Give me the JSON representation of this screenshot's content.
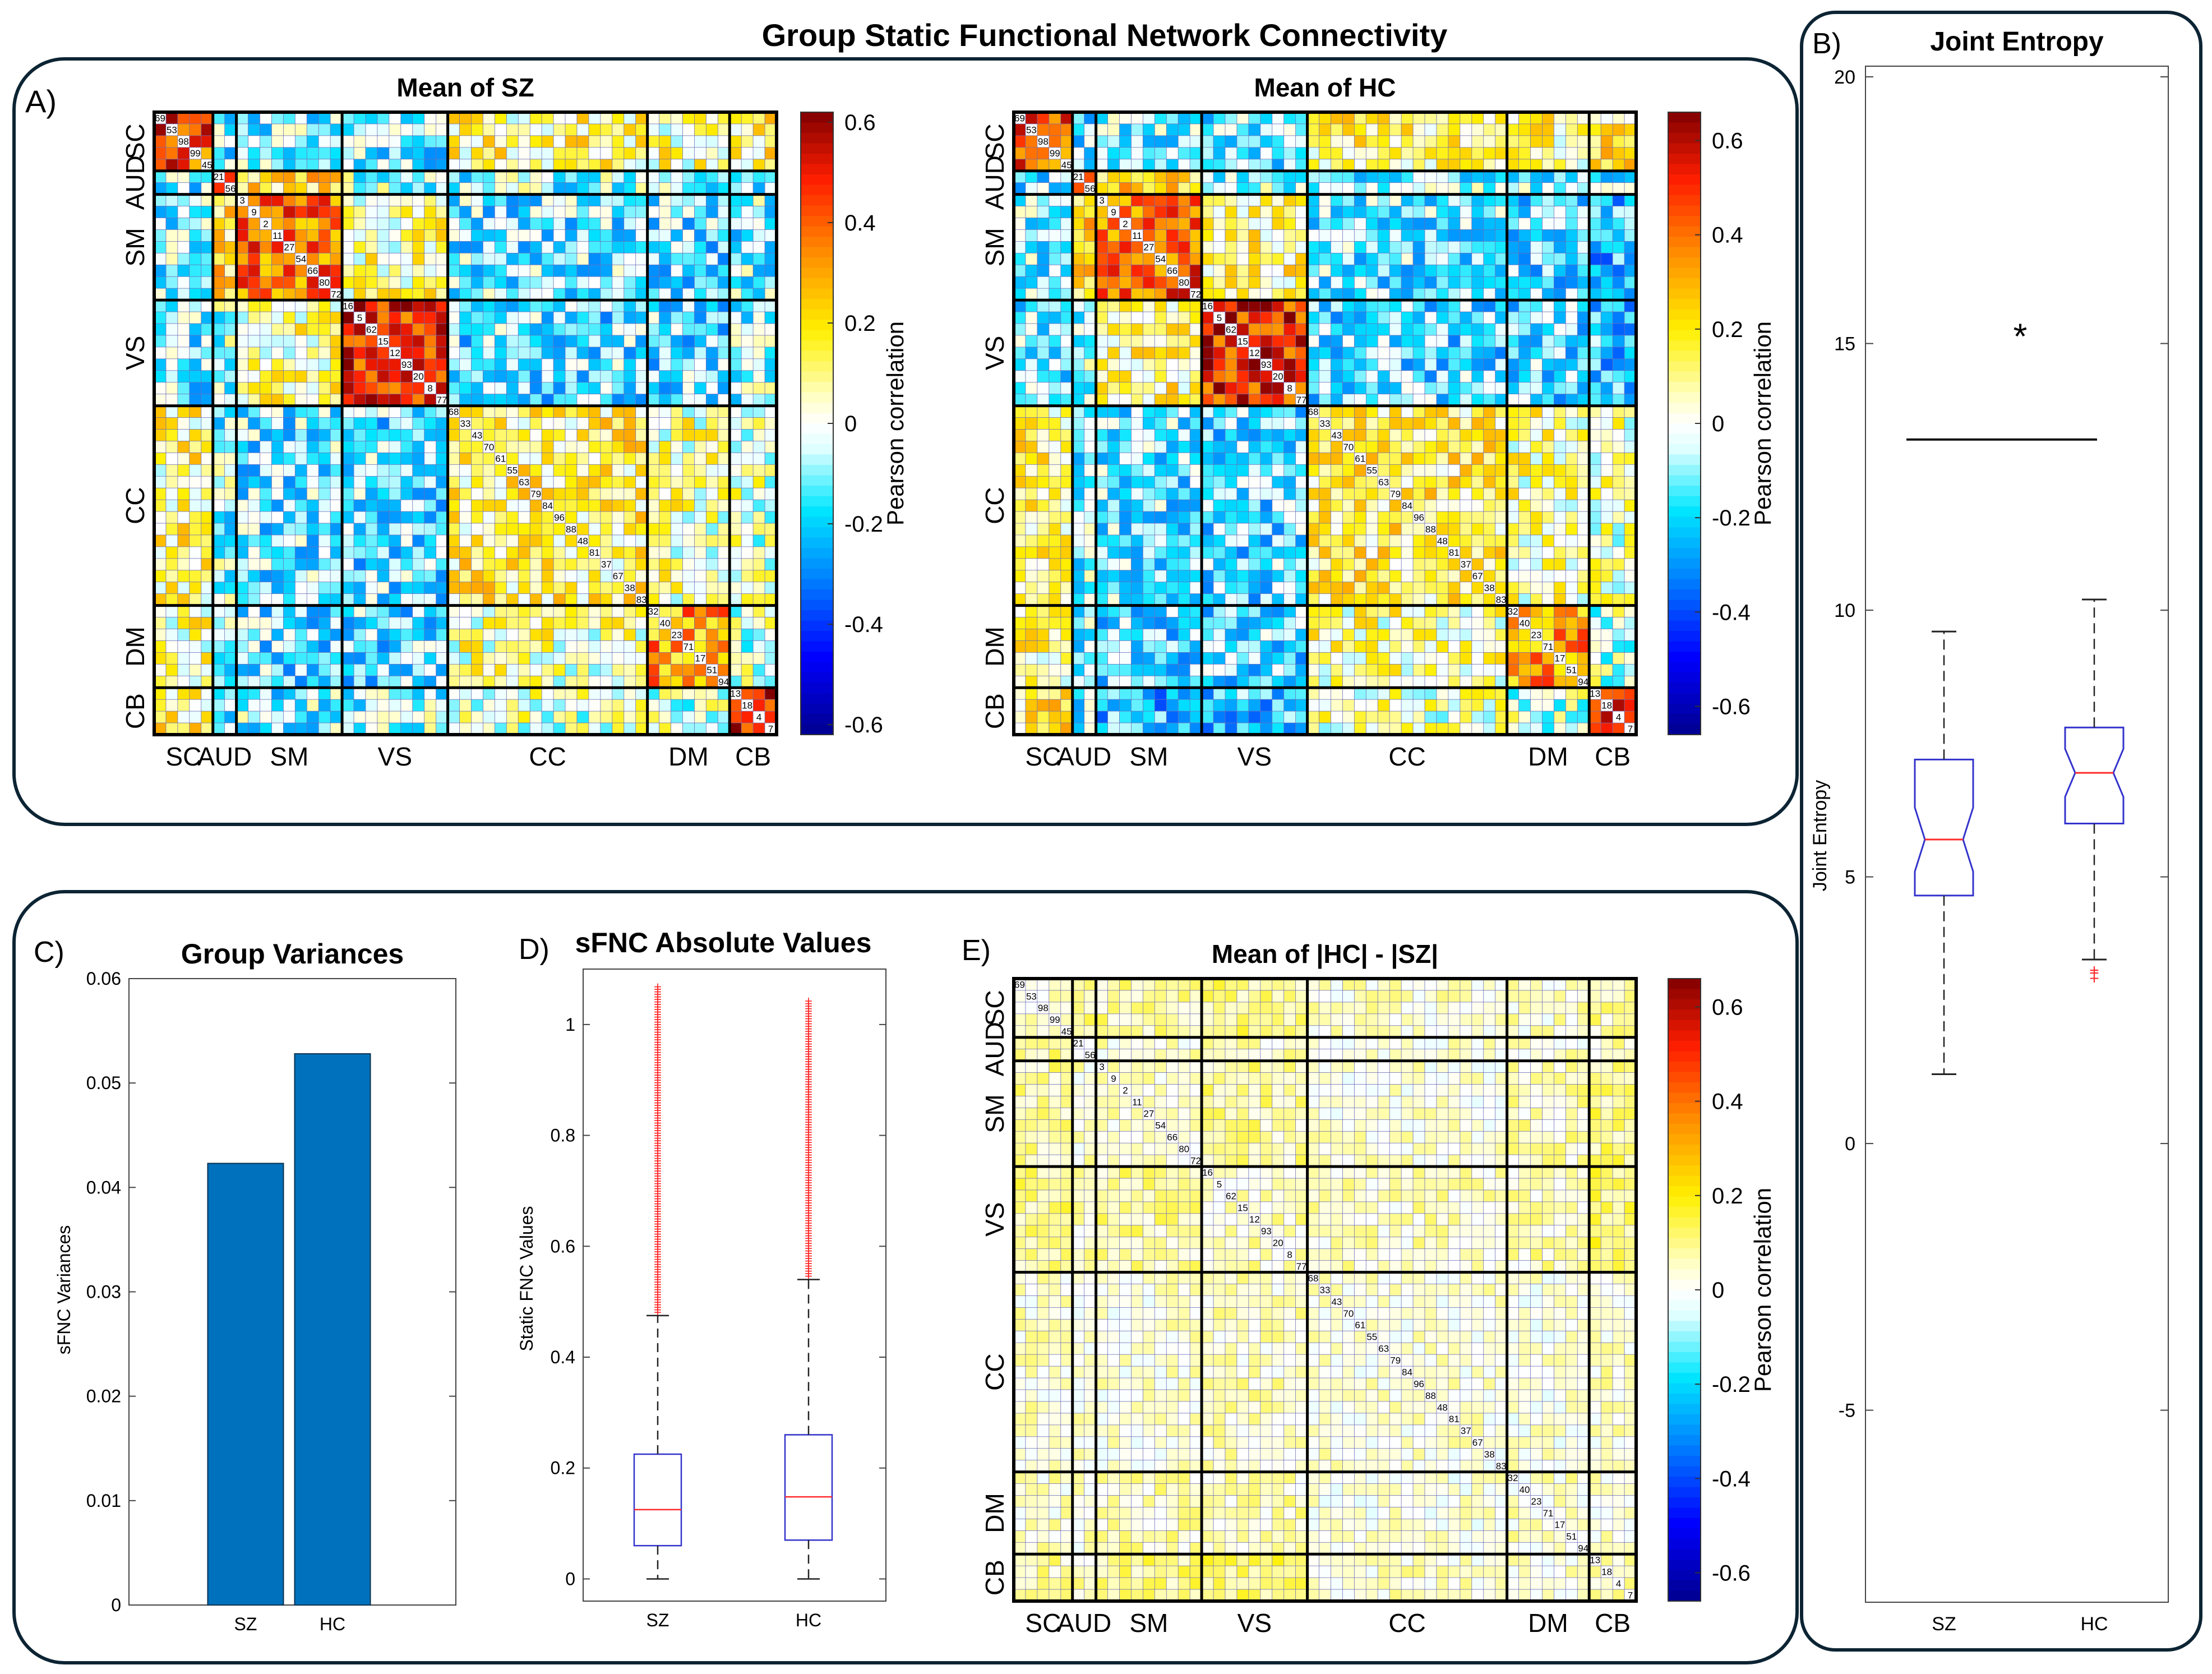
{
  "figure": {
    "main_title": "Group Static Functional Network Connectivity",
    "panel_letters": {
      "A": "A)",
      "B": "B)",
      "C": "C)",
      "D": "D)",
      "E": "E)"
    }
  },
  "network_labels": [
    "SC",
    "AUD",
    "SM",
    "VS",
    "CC",
    "DM",
    "CB"
  ],
  "component_order": [
    "69",
    "53",
    "98",
    "99",
    "45",
    "21",
    "56",
    "3",
    "9",
    "2",
    "11",
    "27",
    "54",
    "66",
    "80",
    "72",
    "16",
    "5",
    "62",
    "15",
    "12",
    "93",
    "20",
    "8",
    "77",
    "68",
    "33",
    "43",
    "70",
    "61",
    "55",
    "63",
    "79",
    "84",
    "96",
    "88",
    "48",
    "81",
    "37",
    "67",
    "38",
    "83",
    "32",
    "40",
    "23",
    "71",
    "17",
    "51",
    "94",
    "13",
    "18",
    "4",
    "7"
  ],
  "chart_data": [
    {
      "id": "A-left",
      "type": "heatmap",
      "title": "Mean of SZ",
      "colorbar_label": "Pearson correlation",
      "colorbar_ticks": [
        "0.6",
        "0.4",
        "0.2",
        "0",
        "-0.2",
        "-0.4",
        "-0.6"
      ],
      "clim": [
        -0.62,
        0.62
      ],
      "groups": [
        {
          "name": "SC",
          "size": 5
        },
        {
          "name": "AUD",
          "size": 2
        },
        {
          "name": "SM",
          "size": 9
        },
        {
          "name": "VS",
          "size": 9
        },
        {
          "name": "CC",
          "size": 17
        },
        {
          "name": "DM",
          "size": 7
        },
        {
          "name": "CB",
          "size": 4
        }
      ],
      "within_means": {
        "SC": 0.42,
        "AUD": 0.3,
        "SM": 0.38,
        "VS": 0.48,
        "CC": 0.12,
        "DM": 0.3,
        "CB": 0.5
      },
      "between_means": {
        "SC-AUD": -0.12,
        "SC-SM": -0.1,
        "SC-VS": -0.12,
        "SC-CC": 0.1,
        "SC-DM": 0.08,
        "SC-CB": 0.12,
        "AUD-SM": 0.2,
        "AUD-VS": -0.05,
        "AUD-CC": -0.08,
        "AUD-DM": -0.1,
        "AUD-CB": -0.1,
        "SM-VS": 0.08,
        "SM-CC": -0.12,
        "SM-DM": -0.14,
        "SM-CB": -0.1,
        "VS-CC": -0.14,
        "VS-DM": -0.14,
        "VS-CB": -0.08,
        "CC-DM": 0.06,
        "CC-CB": 0.02,
        "DM-CB": 0.0
      }
    },
    {
      "id": "A-right",
      "type": "heatmap",
      "title": "Mean of HC",
      "colorbar_label": "Pearson correlation",
      "colorbar_ticks": [
        "0.6",
        "0.4",
        "0.2",
        "0",
        "-0.2",
        "-0.4",
        "-0.6"
      ],
      "clim": [
        -0.66,
        0.66
      ],
      "groups": [
        {
          "name": "SC",
          "size": 5
        },
        {
          "name": "AUD",
          "size": 2
        },
        {
          "name": "SM",
          "size": 9
        },
        {
          "name": "VS",
          "size": 9
        },
        {
          "name": "CC",
          "size": 17
        },
        {
          "name": "DM",
          "size": 7
        },
        {
          "name": "CB",
          "size": 4
        }
      ],
      "within_means": {
        "SC": 0.45,
        "AUD": 0.35,
        "SM": 0.42,
        "VS": 0.52,
        "CC": 0.14,
        "DM": 0.34,
        "CB": 0.55
      },
      "between_means": {
        "SC-AUD": -0.14,
        "SC-SM": -0.12,
        "SC-VS": -0.14,
        "SC-CC": 0.12,
        "SC-DM": 0.1,
        "SC-CB": 0.16,
        "AUD-SM": 0.24,
        "AUD-VS": -0.06,
        "AUD-CC": -0.1,
        "AUD-DM": -0.12,
        "AUD-CB": -0.12,
        "SM-VS": 0.12,
        "SM-CC": -0.14,
        "SM-DM": -0.16,
        "SM-CB": -0.22,
        "VS-CC": -0.16,
        "VS-DM": -0.16,
        "VS-CB": -0.2,
        "CC-DM": 0.08,
        "CC-CB": 0.04,
        "DM-CB": -0.02
      }
    },
    {
      "id": "E",
      "type": "heatmap",
      "title": "Mean of |HC| - |SZ|",
      "colorbar_label": "Pearson correlation",
      "colorbar_ticks": [
        "0.6",
        "0.4",
        "0.2",
        "0",
        "-0.2",
        "-0.4",
        "-0.6"
      ],
      "clim": [
        -0.66,
        0.66
      ],
      "groups": [
        {
          "name": "SC",
          "size": 5
        },
        {
          "name": "AUD",
          "size": 2
        },
        {
          "name": "SM",
          "size": 9
        },
        {
          "name": "VS",
          "size": 9
        },
        {
          "name": "CC",
          "size": 17
        },
        {
          "name": "DM",
          "size": 7
        },
        {
          "name": "CB",
          "size": 4
        }
      ],
      "within_means": {
        "SC": 0.06,
        "AUD": 0.04,
        "SM": 0.05,
        "VS": 0.06,
        "CC": 0.03,
        "DM": 0.04,
        "CB": 0.05
      },
      "between_means": {
        "SC-AUD": 0.08,
        "SC-SM": 0.08,
        "SC-VS": 0.1,
        "SC-CC": 0.04,
        "SC-DM": 0.04,
        "SC-CB": 0.08,
        "AUD-SM": 0.04,
        "AUD-VS": 0.06,
        "AUD-CC": 0.03,
        "AUD-DM": 0.04,
        "AUD-CB": 0.05,
        "SM-VS": 0.08,
        "SM-CC": 0.03,
        "SM-DM": 0.06,
        "SM-CB": 0.1,
        "VS-CC": 0.05,
        "VS-DM": 0.06,
        "VS-CB": 0.12,
        "CC-DM": 0.02,
        "CC-CB": 0.04,
        "DM-CB": 0.03
      }
    },
    {
      "id": "B",
      "type": "box",
      "title": "Joint Entropy",
      "ylabel": "Joint Entropy",
      "ylim": [
        -8.6,
        20.2
      ],
      "yticks": [
        -5,
        0,
        5,
        10,
        15,
        20
      ],
      "categories": [
        "SZ",
        "HC"
      ],
      "boxes": [
        {
          "name": "SZ",
          "q1": 4.65,
          "median": 5.7,
          "q3": 7.2,
          "whisker_low": 1.3,
          "whisker_high": 9.6,
          "notch_low": 5.1,
          "notch_high": 6.3,
          "outliers": []
        },
        {
          "name": "HC",
          "q1": 6.0,
          "median": 6.95,
          "q3": 7.8,
          "whisker_low": 3.45,
          "whisker_high": 10.2,
          "notch_low": 6.5,
          "notch_high": 7.4,
          "outliers": [
            3.2,
            3.1,
            3.25
          ]
        }
      ],
      "significance": {
        "marker": "*",
        "y": 15.2,
        "bar_y": 13.2
      }
    },
    {
      "id": "C",
      "type": "bar",
      "title": "Group Variances",
      "ylabel": "sFNC Variances",
      "categories": [
        "SZ",
        "HC"
      ],
      "values": [
        0.0423,
        0.0528
      ],
      "ylim": [
        0,
        0.06
      ],
      "yticks": [
        "0",
        "0.01",
        "0.02",
        "0.03",
        "0.04",
        "0.05",
        "0.06"
      ],
      "color": "#0072bd"
    },
    {
      "id": "D",
      "type": "box",
      "title": "sFNC Absolute Values",
      "ylabel": "Static FNC Values",
      "ylim": [
        -0.04,
        1.1
      ],
      "yticks": [
        "0",
        "0.2",
        "0.4",
        "0.6",
        "0.8",
        "1"
      ],
      "categories": [
        "SZ",
        "HC"
      ],
      "boxes": [
        {
          "name": "SZ",
          "q1": 0.06,
          "median": 0.125,
          "q3": 0.225,
          "whisker_low": 0.0,
          "whisker_high": 0.475,
          "outlier_max": 1.07
        },
        {
          "name": "HC",
          "q1": 0.07,
          "median": 0.148,
          "q3": 0.26,
          "whisker_low": 0.0,
          "whisker_high": 0.54,
          "outlier_max": 1.045
        }
      ]
    }
  ]
}
